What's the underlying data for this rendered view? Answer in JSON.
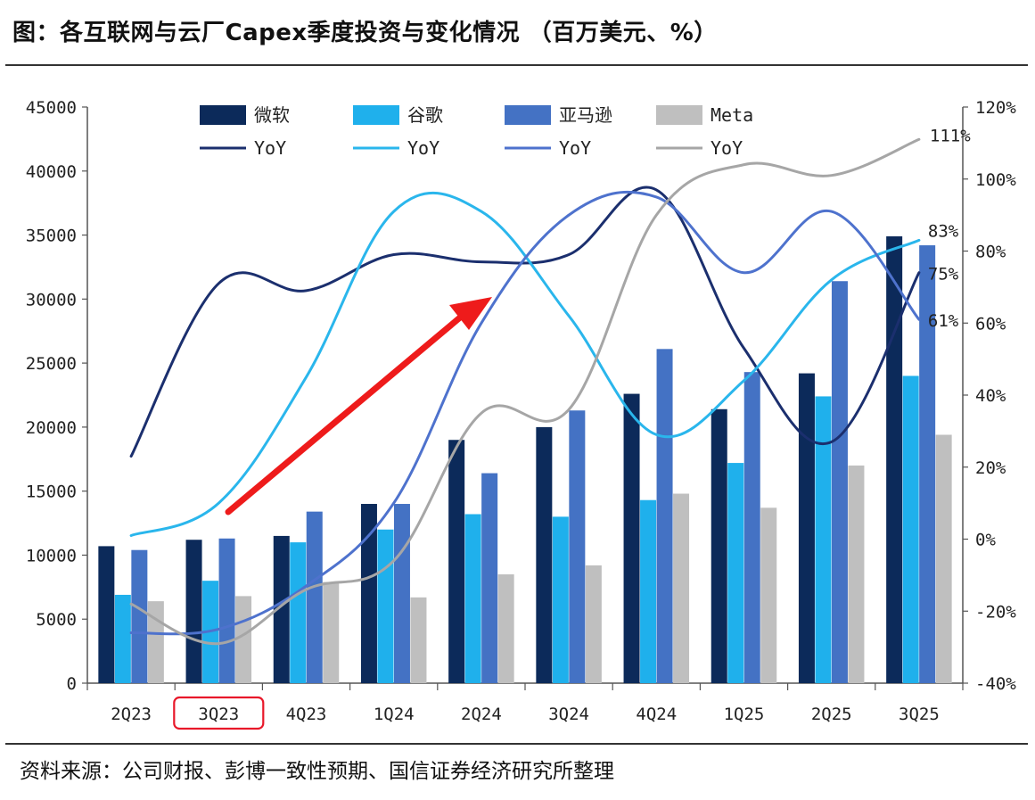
{
  "title": "图：各互联网与云厂Capex季度投资与变化情况 （百万美元、%）",
  "source": "资料来源：公司财报、彭博一致性预期、国信证券经济研究所整理",
  "chart_data": {
    "type": "bar",
    "categories": [
      "2Q23",
      "3Q23",
      "4Q23",
      "1Q24",
      "2Q24",
      "3Q24",
      "4Q24",
      "1Q25",
      "2Q25",
      "3Q25"
    ],
    "highlighted_category": "3Q23",
    "ylim": [
      0,
      45000
    ],
    "yticks": [
      "0",
      "5000",
      "10000",
      "15000",
      "20000",
      "25000",
      "30000",
      "35000",
      "40000",
      "45000"
    ],
    "y2lim": [
      -40,
      120
    ],
    "y2ticks": [
      "-40%",
      "-20%",
      "0%",
      "20%",
      "40%",
      "60%",
      "80%",
      "100%",
      "120%"
    ],
    "legend_position": "top",
    "series": [
      {
        "name": "微软",
        "color": "#0c2a5a",
        "values": [
          10700,
          11200,
          11500,
          14000,
          19000,
          20000,
          22600,
          21400,
          24200,
          34900
        ]
      },
      {
        "name": "谷歌",
        "color": "#1fb0ec",
        "values": [
          6900,
          8000,
          11000,
          12000,
          13200,
          13000,
          14300,
          17200,
          22400,
          24000
        ]
      },
      {
        "name": "亚马逊",
        "color": "#4472c4",
        "values": [
          10400,
          11300,
          13400,
          14000,
          16400,
          21300,
          26100,
          24300,
          31400,
          34200
        ]
      },
      {
        "name": "Meta",
        "color": "#bfbfbf",
        "values": [
          6400,
          6800,
          7900,
          6700,
          8500,
          9200,
          14800,
          13700,
          17000,
          19400
        ]
      }
    ],
    "yoy_series": [
      {
        "name": "YoY",
        "company": "微软",
        "color": "#1b2f6e",
        "values": [
          23,
          71,
          69,
          79,
          77,
          79,
          97,
          53,
          27,
          74
        ],
        "end_label": "75%"
      },
      {
        "name": "YoY",
        "company": "谷歌",
        "color": "#2ab6ec",
        "values": [
          1,
          10,
          45,
          91,
          91,
          62,
          29,
          44,
          72,
          83
        ],
        "end_label": "83%"
      },
      {
        "name": "YoY",
        "company": "亚马逊",
        "color": "#4e72cd",
        "values": [
          -26,
          -25,
          -13,
          10,
          60,
          90,
          95,
          74,
          91,
          61
        ],
        "end_label": "61%"
      },
      {
        "name": "YoY",
        "company": "Meta",
        "color": "#a6a6a6",
        "values": [
          -18,
          -29,
          -14,
          -6,
          35,
          36,
          90,
          104,
          101,
          111
        ],
        "end_label": "111%"
      }
    ]
  }
}
